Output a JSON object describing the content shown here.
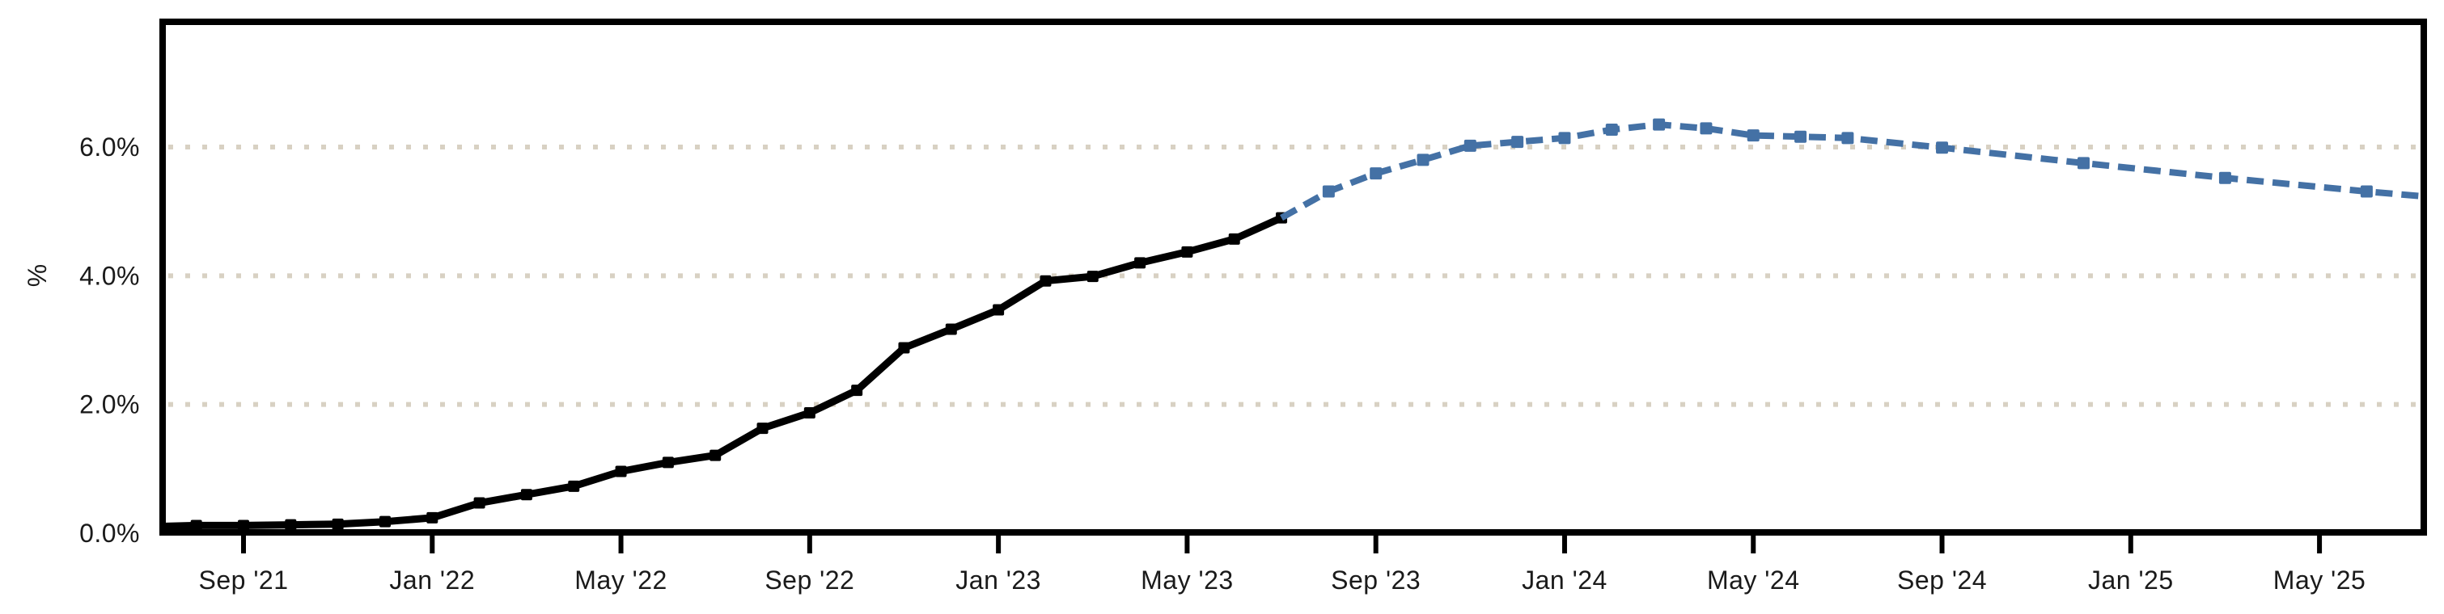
{
  "chart_data": {
    "type": "line",
    "title": "",
    "ylabel": "%",
    "xlabel": "",
    "legend": "none",
    "grid": "horizontal-dotted",
    "ylim": [
      0,
      8.0
    ],
    "y_axis": {
      "ticks": [
        {
          "label": "0.0%",
          "value": 0.0
        },
        {
          "label": "2.0%",
          "value": 2.0
        },
        {
          "label": "4.0%",
          "value": 4.0
        },
        {
          "label": "6.0%",
          "value": 6.0
        }
      ],
      "gridline_values": [
        2.0,
        4.0,
        6.0
      ]
    },
    "x_axis": {
      "unit": "months since Sep 2021",
      "ticks": [
        {
          "label": "Sep '21",
          "m": 0
        },
        {
          "label": "Jan '22",
          "m": 4
        },
        {
          "label": "May '22",
          "m": 8
        },
        {
          "label": "Sep '22",
          "m": 12
        },
        {
          "label": "Jan '23",
          "m": 16
        },
        {
          "label": "May '23",
          "m": 20
        },
        {
          "label": "Sep '23",
          "m": 24
        },
        {
          "label": "Jan '24",
          "m": 28
        },
        {
          "label": "May '24",
          "m": 32
        },
        {
          "label": "Sep '24",
          "m": 36
        },
        {
          "label": "Jan '25",
          "m": 40
        },
        {
          "label": "May '25",
          "m": 44
        }
      ]
    },
    "colors": {
      "historical": "#000000",
      "forecast": "#4471a5",
      "gridline": "#d8d1c3",
      "axis": "#000000",
      "text": "#1a1a1a",
      "background": "#ffffff"
    },
    "series": [
      {
        "name": "historical",
        "style": "solid",
        "marker": "square",
        "points": [
          {
            "date": "Jul '21",
            "m": -2,
            "value": 0.1,
            "marker": false
          },
          {
            "date": "Aug '21",
            "m": -1,
            "value": 0.12,
            "marker": true
          },
          {
            "date": "Sep '21",
            "m": 0,
            "value": 0.12,
            "marker": true
          },
          {
            "date": "Oct '21",
            "m": 1,
            "value": 0.13,
            "marker": true
          },
          {
            "date": "Nov '21",
            "m": 2,
            "value": 0.14,
            "marker": true
          },
          {
            "date": "Dec '21",
            "m": 3,
            "value": 0.18,
            "marker": true
          },
          {
            "date": "Jan '22",
            "m": 4,
            "value": 0.24,
            "marker": true
          },
          {
            "date": "Feb '22",
            "m": 5,
            "value": 0.47,
            "marker": true
          },
          {
            "date": "Mar '22",
            "m": 6,
            "value": 0.6,
            "marker": true
          },
          {
            "date": "Apr '22",
            "m": 7,
            "value": 0.73,
            "marker": true
          },
          {
            "date": "May '22",
            "m": 8,
            "value": 0.96,
            "marker": true
          },
          {
            "date": "Jun '22",
            "m": 9,
            "value": 1.1,
            "marker": true
          },
          {
            "date": "Jul '22",
            "m": 10,
            "value": 1.21,
            "marker": true
          },
          {
            "date": "Aug '22",
            "m": 11,
            "value": 1.63,
            "marker": true
          },
          {
            "date": "Sep '22",
            "m": 12,
            "value": 1.87,
            "marker": true
          },
          {
            "date": "Oct '22",
            "m": 13,
            "value": 2.22,
            "marker": true
          },
          {
            "date": "Nov '22",
            "m": 14,
            "value": 2.88,
            "marker": true
          },
          {
            "date": "Dec '22",
            "m": 15,
            "value": 3.17,
            "marker": true
          },
          {
            "date": "Jan '23",
            "m": 16,
            "value": 3.47,
            "marker": true
          },
          {
            "date": "Feb '23",
            "m": 17,
            "value": 3.92,
            "marker": true
          },
          {
            "date": "Mar '23",
            "m": 18,
            "value": 3.99,
            "marker": true
          },
          {
            "date": "Apr '23",
            "m": 19,
            "value": 4.2,
            "marker": true
          },
          {
            "date": "May '23",
            "m": 20,
            "value": 4.37,
            "marker": true
          },
          {
            "date": "Jun '23",
            "m": 21,
            "value": 4.57,
            "marker": true
          },
          {
            "date": "Jul '23",
            "m": 22,
            "value": 4.9,
            "marker": true
          }
        ]
      },
      {
        "name": "forecast",
        "style": "dashed",
        "marker": "square",
        "points": [
          {
            "date": "Jul '23",
            "m": 22,
            "value": 4.9,
            "marker": false
          },
          {
            "date": "Aug '23",
            "m": 23,
            "value": 5.31,
            "marker": true
          },
          {
            "date": "Sep '23",
            "m": 24,
            "value": 5.59,
            "marker": true
          },
          {
            "date": "Oct '23",
            "m": 25,
            "value": 5.8,
            "marker": true
          },
          {
            "date": "Nov '23",
            "m": 26,
            "value": 6.02,
            "marker": true
          },
          {
            "date": "Dec '23",
            "m": 27,
            "value": 6.08,
            "marker": true
          },
          {
            "date": "Jan '24",
            "m": 28,
            "value": 6.14,
            "marker": true
          },
          {
            "date": "Feb '24",
            "m": 29,
            "value": 6.27,
            "marker": true
          },
          {
            "date": "Mar '24",
            "m": 30,
            "value": 6.35,
            "marker": true
          },
          {
            "date": "Apr '24",
            "m": 31,
            "value": 6.29,
            "marker": true
          },
          {
            "date": "May '24",
            "m": 32,
            "value": 6.18,
            "marker": true
          },
          {
            "date": "Jun '24",
            "m": 33,
            "value": 6.16,
            "marker": true
          },
          {
            "date": "Jul '24",
            "m": 34,
            "value": 6.14,
            "marker": true
          },
          {
            "date": "Sep '24",
            "m": 36,
            "value": 5.99,
            "marker": true
          },
          {
            "date": "Dec '24",
            "m": 39,
            "value": 5.75,
            "marker": true
          },
          {
            "date": "Mar '25",
            "m": 42,
            "value": 5.52,
            "marker": true
          },
          {
            "date": "Jun '25",
            "m": 45,
            "value": 5.31,
            "marker": true
          },
          {
            "date": "Sep '25",
            "m": 48,
            "value": 5.12,
            "marker": false
          }
        ]
      }
    ]
  }
}
